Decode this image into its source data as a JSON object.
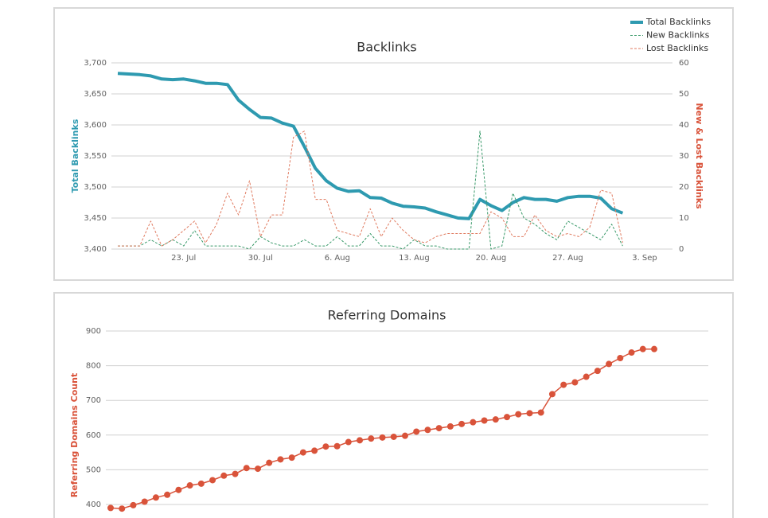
{
  "chart_data": [
    {
      "type": "line",
      "title": "Backlinks",
      "ylabel": "Total Backlinks",
      "y2label": "New & Lost Backlinks",
      "categories": [
        null,
        null,
        null,
        null,
        null,
        null,
        "23. Jul",
        null,
        null,
        null,
        null,
        null,
        null,
        "30. Jul",
        null,
        null,
        null,
        null,
        null,
        null,
        "6. Aug",
        null,
        null,
        null,
        null,
        null,
        null,
        "13. Aug",
        null,
        null,
        null,
        null,
        null,
        null,
        "20. Aug",
        null,
        null,
        null,
        null,
        null,
        null,
        "27. Aug",
        null,
        null,
        null,
        null,
        null,
        null,
        "3. Sep"
      ],
      "series": [
        {
          "name": "Total Backlinks",
          "color": "#2e9ab0",
          "axis": "y",
          "dashed": false,
          "values": [
            3683,
            3682,
            3681,
            3679,
            3674,
            3673,
            3674,
            3671,
            3667,
            3667,
            3665,
            3640,
            3625,
            3612,
            3611,
            3603,
            3598,
            3565,
            3530,
            3510,
            3498,
            3493,
            3494,
            3483,
            3482,
            3474,
            3469,
            3468,
            3466,
            3460,
            3455,
            3450,
            3449,
            3480,
            3470,
            3462,
            3475,
            3483,
            3480,
            3480,
            3477,
            3483,
            3485,
            3485,
            3482,
            3465,
            3458,
            null,
            null
          ]
        },
        {
          "name": "New Backlinks",
          "color": "#3a9a6a",
          "axis": "y2",
          "dashed": true,
          "values": [
            1,
            1,
            1,
            3,
            1,
            3,
            1,
            6,
            1,
            1,
            1,
            1,
            0,
            4,
            2,
            1,
            1,
            3,
            1,
            1,
            4,
            1,
            1,
            5,
            1,
            1,
            0,
            3,
            1,
            1,
            0,
            0,
            0,
            38,
            0,
            1,
            18,
            10,
            8,
            5,
            3,
            9,
            7,
            5,
            3,
            8,
            1,
            null,
            null
          ]
        },
        {
          "name": "Lost Backlinks",
          "color": "#e07a5f",
          "axis": "y2",
          "dashed": true,
          "values": [
            1,
            1,
            1,
            9,
            1,
            3,
            6,
            9,
            2,
            8,
            18,
            11,
            22,
            4,
            11,
            11,
            36,
            38,
            16,
            16,
            6,
            5,
            4,
            13,
            4,
            10,
            6,
            3,
            2,
            4,
            5,
            5,
            5,
            5,
            12,
            10,
            4,
            4,
            11,
            6,
            4,
            5,
            4,
            7,
            19,
            18,
            2,
            null,
            null
          ]
        }
      ],
      "ylim": [
        3400,
        3700
      ],
      "yticks": [
        {
          "value": 3400,
          "label": "3,400"
        },
        {
          "value": 3450,
          "label": "3,450"
        },
        {
          "value": 3500,
          "label": "3,500"
        },
        {
          "value": 3550,
          "label": "3,550"
        },
        {
          "value": 3600,
          "label": "3,600"
        },
        {
          "value": 3650,
          "label": "3,650"
        },
        {
          "value": 3700,
          "label": "3,700"
        }
      ],
      "y2lim": [
        0,
        60
      ],
      "y2ticks": [
        0,
        10,
        20,
        30,
        40,
        50,
        60
      ],
      "grid": true,
      "legend": "top-right"
    },
    {
      "type": "line",
      "title": "Referring Domains",
      "ylabel": "Referring Domains Count",
      "categories": [
        null,
        null,
        null,
        null,
        null,
        null,
        null,
        null,
        null,
        null,
        null,
        null,
        null,
        null,
        null,
        null,
        null,
        null,
        null,
        null,
        null,
        null,
        null,
        null,
        null,
        null,
        null,
        null,
        null,
        null,
        null,
        null,
        null,
        null,
        null,
        null,
        null,
        null,
        null,
        null,
        null,
        null,
        null,
        null,
        null,
        null,
        null,
        null,
        null
      ],
      "series": [
        {
          "name": "Referring Domains",
          "color": "#d9533a",
          "axis": "y",
          "dashed": false,
          "markers": true,
          "values": [
            390,
            388,
            398,
            408,
            420,
            428,
            442,
            455,
            460,
            470,
            483,
            488,
            505,
            503,
            520,
            530,
            535,
            550,
            555,
            567,
            568,
            580,
            585,
            590,
            593,
            595,
            598,
            610,
            615,
            620,
            625,
            632,
            637,
            642,
            645,
            652,
            660,
            663,
            665,
            718,
            745,
            752,
            768,
            785,
            805,
            822,
            838,
            848,
            848
          ]
        }
      ],
      "ylim": [
        400,
        900
      ],
      "yticks": [
        400,
        500,
        600,
        700,
        800,
        900
      ],
      "grid": true
    }
  ]
}
